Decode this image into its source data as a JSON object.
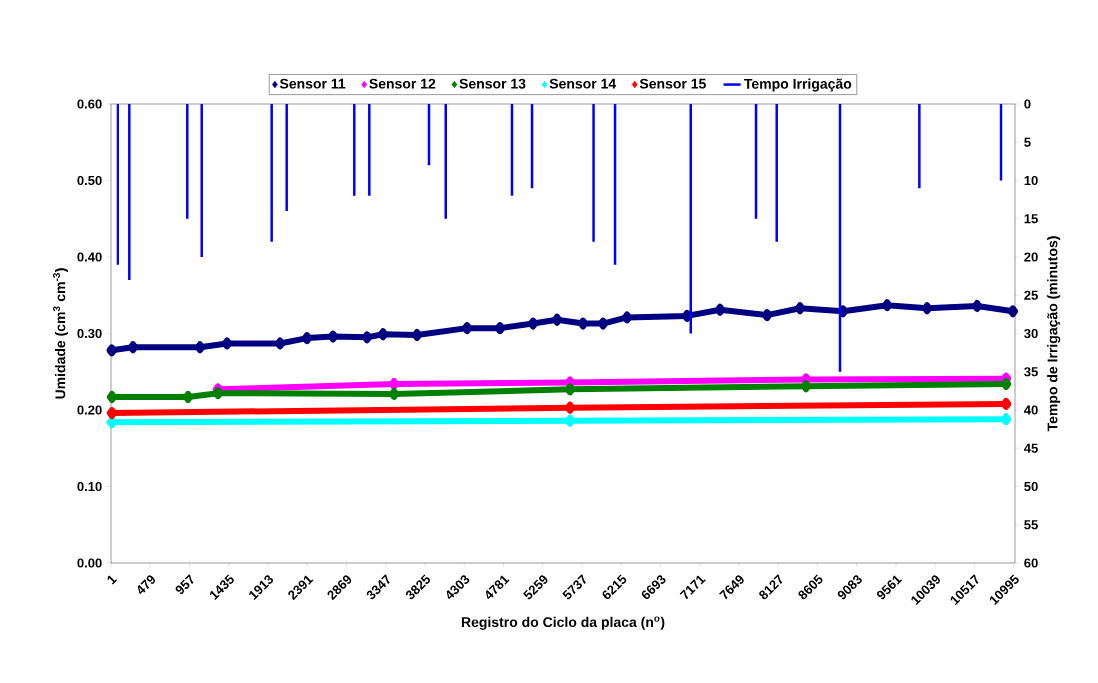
{
  "chart_data": {
    "type": "line",
    "xlabel": "Registro do Ciclo da placa (n$^{o}$)",
    "ylabel": "Umidade (cm$^{3}$ cm$^{-3}$)",
    "y2label": "Tempo de Irrigação (minutos)",
    "xlim": [
      1,
      11011
    ],
    "xticks": [
      1,
      479,
      957,
      1435,
      1913,
      2391,
      2869,
      3347,
      3825,
      4303,
      4781,
      5259,
      5737,
      6215,
      6693,
      7171,
      7649,
      8127,
      8605,
      9083,
      9561,
      10039,
      10517,
      10995
    ],
    "ylim": [
      0,
      0.6
    ],
    "yticks": [
      {
        "value": 0,
        "label": "0.00"
      },
      {
        "value": 0.1,
        "label": "0.10"
      },
      {
        "value": 0.2,
        "label": "0.20"
      },
      {
        "value": 0.3,
        "label": "0.30"
      },
      {
        "value": 0.4,
        "label": "0.40"
      },
      {
        "value": 0.5,
        "label": "0.50"
      },
      {
        "value": 0.6,
        "label": "0.60"
      }
    ],
    "y2lim": [
      60,
      0
    ],
    "y2ticks": [
      0,
      5,
      10,
      15,
      20,
      25,
      30,
      35,
      40,
      45,
      50,
      55,
      60
    ],
    "legend": "top",
    "marker": "diamond",
    "grid": false,
    "series": [
      {
        "name": "Sensor 11",
        "color": "#000080",
        "x": [
          10,
          269,
          1085,
          1414,
          2060,
          2388,
          2705,
          3119,
          3314,
          3728,
          4337,
          4739,
          5141,
          5433,
          5750,
          5994,
          6286,
          7017,
          7419,
          7991,
          8393,
          8917,
          9453,
          9940,
          10549,
          10985
        ],
        "values": [
          0.278,
          0.282,
          0.282,
          0.287,
          0.287,
          0.294,
          0.296,
          0.295,
          0.299,
          0.298,
          0.307,
          0.307,
          0.313,
          0.318,
          0.313,
          0.313,
          0.321,
          0.323,
          0.331,
          0.324,
          0.333,
          0.329,
          0.337,
          0.333,
          0.336,
          0.329
        ]
      },
      {
        "name": "Sensor 12",
        "color": "#ff00ff",
        "x": [
          1304,
          3448,
          5592,
          8466,
          10902
        ],
        "values": [
          0.227,
          0.234,
          0.236,
          0.24,
          0.241
        ]
      },
      {
        "name": "Sensor 13",
        "color": "#008000",
        "x": [
          13,
          939,
          1304,
          3448,
          5592,
          8466,
          10902
        ],
        "values": [
          0.217,
          0.217,
          0.222,
          0.221,
          0.227,
          0.231,
          0.234
        ]
      },
      {
        "name": "Sensor 14",
        "color": "#00ffff",
        "x": [
          13,
          5592,
          10902
        ],
        "values": [
          0.184,
          0.186,
          0.188
        ]
      },
      {
        "name": "Sensor 15",
        "color": "#ff0000",
        "x": [
          13,
          5592,
          10902
        ],
        "values": [
          0.196,
          0.203,
          0.208
        ]
      },
      {
        "name": "Tempo Irrigação",
        "type": "bar",
        "axis": "y2",
        "color": "#0000ff",
        "x": [
          83,
          224,
          930,
          1106,
          1958,
          2141,
          2964,
          3147,
          3874,
          4078,
          4885,
          5129,
          5878,
          6140,
          7062,
          7857,
          8109,
          8880,
          9846,
          10841
        ],
        "values": [
          21,
          23,
          15,
          20,
          18,
          14,
          12,
          12,
          8,
          15,
          12,
          11,
          18,
          21,
          30,
          15,
          18,
          35,
          11,
          10
        ]
      }
    ]
  }
}
